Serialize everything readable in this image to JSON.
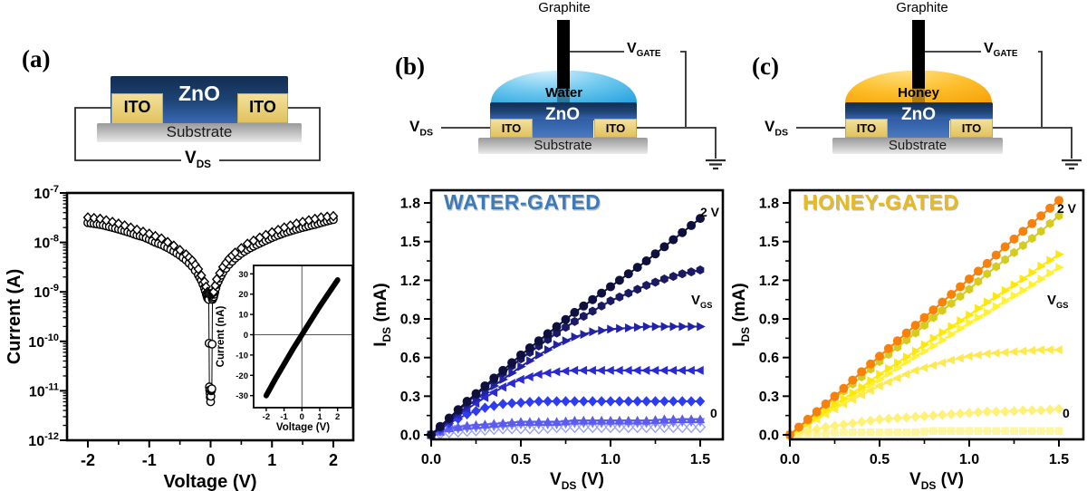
{
  "figure": {
    "panels": {
      "a": {
        "label": "(a)",
        "schematic": {
          "zno": "ZnO",
          "ito_left": "ITO",
          "ito_right": "ITO",
          "substrate": "Substrate",
          "vds_base": "V",
          "vds_sub": "DS"
        }
      },
      "b": {
        "label": "(b)",
        "title": "WATER-GATED",
        "title_color": "#3d7ab8",
        "schematic": {
          "graphite": "Graphite",
          "liquid": "Water",
          "zno": "ZnO",
          "ito_left": "ITO",
          "ito_right": "ITO",
          "substrate": "Substrate",
          "vds_base": "V",
          "vds_sub": "DS",
          "vgate_base": "V",
          "vgate_sub": "GATE"
        },
        "annotations": {
          "gate_top": "2 V",
          "gate_bottom": "0",
          "gate_base": "V",
          "gate_sub": "GS"
        }
      },
      "c": {
        "label": "(c)",
        "title": "HONEY-GATED",
        "title_color": "#e9ba1c",
        "schematic": {
          "graphite": "Graphite",
          "liquid": "Honey",
          "zno": "ZnO",
          "ito_left": "ITO",
          "ito_right": "ITO",
          "substrate": "Substrate",
          "vds_base": "V",
          "vds_sub": "DS",
          "vgate_base": "V",
          "vgate_sub": "GATE"
        },
        "annotations": {
          "gate_top": "2 V",
          "gate_bottom": "0",
          "gate_base": "V",
          "gate_sub": "GS"
        }
      }
    }
  },
  "chart_data": [
    {
      "id": "iv-log",
      "type": "scatter",
      "xlabel": "Voltage (V)",
      "ylabel": "Current (A)",
      "x_ticks": [
        -2,
        -1,
        0,
        1,
        2
      ],
      "x_minor_ticks": [
        -1.5,
        -0.5,
        0.5,
        1.5
      ],
      "y_scale": "log",
      "y_tick_exponents": [
        -7,
        -8,
        -9,
        -10,
        -11,
        -12
      ],
      "xlim": [
        -2.5,
        2.5
      ],
      "ylim": [
        1e-12,
        1e-07
      ],
      "series": [
        {
          "name": "iv-sweep-circles",
          "marker": "circle-open",
          "color": "#000000",
          "points": [
            [
              -2,
              2.5e-08
            ],
            [
              -1.9,
              2.4e-08
            ],
            [
              -1.8,
              2.3e-08
            ],
            [
              -1.7,
              2.15e-08
            ],
            [
              -1.6,
              2e-08
            ],
            [
              -1.5,
              1.85e-08
            ],
            [
              -1.4,
              1.7e-08
            ],
            [
              -1.3,
              1.55e-08
            ],
            [
              -1.2,
              1.4e-08
            ],
            [
              -1.1,
              1.3e-08
            ],
            [
              -1.0,
              1.15e-08
            ],
            [
              -0.9,
              1e-08
            ],
            [
              -0.8,
              9e-09
            ],
            [
              -0.7,
              7.8e-09
            ],
            [
              -0.6,
              6.6e-09
            ],
            [
              -0.5,
              5.5e-09
            ],
            [
              -0.4,
              4.4e-09
            ],
            [
              -0.3,
              3.3e-09
            ],
            [
              -0.2,
              2.2e-09
            ],
            [
              -0.15,
              1.7e-09
            ],
            [
              -0.1,
              1.2e-09
            ],
            [
              -0.07,
              9e-10
            ],
            [
              -0.05,
              7.5e-10
            ],
            [
              -0.03,
              7e-10
            ],
            [
              -0.02,
              1.2e-11
            ],
            [
              -0.01,
              9e-12
            ],
            [
              0,
              6e-12
            ],
            [
              0.01,
              1e-11
            ],
            [
              0.02,
              1.1e-11
            ],
            [
              0.03,
              7e-10
            ],
            [
              0.05,
              8e-10
            ],
            [
              0.07,
              1e-09
            ],
            [
              0.1,
              1.4e-09
            ],
            [
              0.15,
              1.9e-09
            ],
            [
              0.2,
              2.5e-09
            ],
            [
              0.3,
              3.6e-09
            ],
            [
              0.4,
              4.8e-09
            ],
            [
              0.5,
              6e-09
            ],
            [
              0.6,
              7.2e-09
            ],
            [
              0.7,
              8.4e-09
            ],
            [
              0.8,
              9.6e-09
            ],
            [
              0.9,
              1.1e-08
            ],
            [
              1.0,
              1.25e-08
            ],
            [
              1.1,
              1.4e-08
            ],
            [
              1.2,
              1.55e-08
            ],
            [
              1.3,
              1.7e-08
            ],
            [
              1.4,
              1.85e-08
            ],
            [
              1.5,
              2e-08
            ],
            [
              1.6,
              2.15e-08
            ],
            [
              1.7,
              2.3e-08
            ],
            [
              1.8,
              2.5e-08
            ],
            [
              1.9,
              2.7e-08
            ],
            [
              2.0,
              2.9e-08
            ]
          ]
        },
        {
          "name": "iv-sweep-diamonds",
          "marker": "diamond-open",
          "color": "#000000",
          "points": [
            [
              -2,
              3.2e-08
            ],
            [
              -1.8,
              3e-08
            ],
            [
              -1.6,
              2.6e-08
            ],
            [
              -1.4,
              2.2e-08
            ],
            [
              -1.2,
              1.8e-08
            ],
            [
              -1.0,
              1.5e-08
            ],
            [
              -0.8,
              1.2e-08
            ],
            [
              -0.6,
              8.6e-09
            ],
            [
              -0.4,
              5.7e-09
            ],
            [
              -0.3,
              4.3e-09
            ],
            [
              -0.2,
              2.9e-09
            ],
            [
              -0.1,
              1.6e-09
            ],
            [
              -0.05,
              1e-09
            ],
            [
              -0.03,
              9e-10
            ],
            [
              0.03,
              9e-10
            ],
            [
              0.05,
              1e-09
            ],
            [
              0.1,
              1.8e-09
            ],
            [
              0.2,
              3.2e-09
            ],
            [
              0.3,
              4.7e-09
            ],
            [
              0.4,
              6.2e-09
            ],
            [
              0.6,
              9.4e-09
            ],
            [
              0.8,
              1.25e-08
            ],
            [
              1.0,
              1.6e-08
            ],
            [
              1.2,
              2e-08
            ],
            [
              1.4,
              2.4e-08
            ],
            [
              1.6,
              2.8e-08
            ],
            [
              1.8,
              3.2e-08
            ],
            [
              2.0,
              3.4e-08
            ]
          ]
        }
      ]
    },
    {
      "id": "iv-linear-inset",
      "type": "line",
      "xlabel": "Voltage (V)",
      "ylabel": "Current (nA)",
      "x_ticks": [
        -2,
        -1,
        0,
        1,
        2
      ],
      "y_ticks": [
        30,
        20,
        10,
        0,
        -10,
        -20,
        -30
      ],
      "xlim": [
        -2.6,
        2.6
      ],
      "ylim": [
        -36,
        36
      ],
      "zero_lines": true,
      "series": [
        {
          "name": "iv-linear-band",
          "color": "#000000",
          "width": 6,
          "points": [
            [
              -2,
              -30
            ],
            [
              -1.5,
              -22
            ],
            [
              -1,
              -14.5
            ],
            [
              -0.5,
              -7
            ],
            [
              0,
              0
            ],
            [
              0.5,
              7
            ],
            [
              1,
              14
            ],
            [
              1.5,
              20.5
            ],
            [
              2,
              27
            ]
          ]
        }
      ]
    },
    {
      "id": "water-gated-output",
      "type": "scatter",
      "title": "WATER-GATED",
      "xlabel_parts": {
        "base": "V",
        "sub": "DS",
        "unit": " (V)"
      },
      "ylabel_parts": {
        "base": "I",
        "sub": "DS",
        "unit": " (mA)"
      },
      "x_ticks": [
        0.0,
        0.5,
        1.0,
        1.5
      ],
      "y_ticks": [
        0.0,
        0.3,
        0.6,
        0.9,
        1.2,
        1.5,
        1.8
      ],
      "xlim": [
        0,
        1.63
      ],
      "ylim": [
        -0.04,
        1.93
      ],
      "gate_sweep": {
        "label_base": "V",
        "label_sub": "GS",
        "from": "0",
        "to": "2 V"
      },
      "x": [
        0,
        0.1,
        0.2,
        0.3,
        0.4,
        0.5,
        0.6,
        0.7,
        0.8,
        0.9,
        1.0,
        1.1,
        1.2,
        1.3,
        1.4,
        1.5
      ],
      "series": [
        {
          "name": "vgs-max-2V",
          "marker": "circle",
          "color": "#10103e",
          "y": [
            0,
            0.13,
            0.26,
            0.38,
            0.5,
            0.62,
            0.73,
            0.84,
            0.95,
            1.05,
            1.15,
            1.25,
            1.35,
            1.46,
            1.57,
            1.68
          ]
        },
        {
          "name": "vgs-step-6",
          "marker": "hexagon",
          "color": "#191964",
          "y": [
            0,
            0.12,
            0.25,
            0.37,
            0.48,
            0.59,
            0.69,
            0.79,
            0.88,
            0.96,
            1.04,
            1.1,
            1.16,
            1.21,
            1.25,
            1.28
          ]
        },
        {
          "name": "vgs-step-5",
          "marker": "tri-right",
          "color": "#2222a6",
          "y": [
            0,
            0.11,
            0.22,
            0.33,
            0.43,
            0.53,
            0.62,
            0.7,
            0.76,
            0.8,
            0.82,
            0.83,
            0.84,
            0.84,
            0.84,
            0.84
          ]
        },
        {
          "name": "vgs-step-4",
          "marker": "tri-left",
          "color": "#2a2ad2",
          "y": [
            0,
            0.1,
            0.2,
            0.29,
            0.37,
            0.43,
            0.47,
            0.49,
            0.5,
            0.5,
            0.5,
            0.5,
            0.5,
            0.5,
            0.5,
            0.5
          ]
        },
        {
          "name": "vgs-step-3",
          "marker": "diamond",
          "color": "#2d3cf2",
          "y": [
            0,
            0.09,
            0.16,
            0.21,
            0.24,
            0.25,
            0.26,
            0.26,
            0.26,
            0.26,
            0.26,
            0.26,
            0.26,
            0.26,
            0.26,
            0.26
          ]
        },
        {
          "name": "vgs-step-2",
          "marker": "tri-up",
          "color": "#5b5bf0",
          "y": [
            0,
            0.05,
            0.07,
            0.08,
            0.09,
            0.1,
            0.1,
            0.1,
            0.11,
            0.11,
            0.11,
            0.11,
            0.11,
            0.12,
            0.12,
            0.12
          ]
        },
        {
          "name": "vgs-step-1",
          "marker": "tri-down",
          "color": "#7b7bf2",
          "y": [
            0,
            0.04,
            0.05,
            0.06,
            0.07,
            0.08,
            0.08,
            0.08,
            0.09,
            0.09,
            0.09,
            0.09,
            0.09,
            0.09,
            0.1,
            0.1
          ]
        },
        {
          "name": "vgs-min-0",
          "marker": "diamond-open",
          "color": "#9aa4f0",
          "y": [
            0,
            0.02,
            0.03,
            0.04,
            0.05,
            0.05,
            0.05,
            0.06,
            0.06,
            0.06,
            0.06,
            0.06,
            0.06,
            0.06,
            0.06,
            0.06
          ]
        }
      ]
    },
    {
      "id": "honey-gated-output",
      "type": "scatter",
      "title": "HONEY-GATED",
      "xlabel_parts": {
        "base": "V",
        "sub": "DS",
        "unit": " (V)"
      },
      "ylabel_parts": {
        "base": "I",
        "sub": "DS",
        "unit": " (mA)"
      },
      "x_ticks": [
        0.0,
        0.5,
        1.0,
        1.5
      ],
      "y_ticks": [
        0.0,
        0.3,
        0.6,
        0.9,
        1.2,
        1.5,
        1.8
      ],
      "xlim": [
        0,
        1.63
      ],
      "ylim": [
        -0.04,
        1.93
      ],
      "gate_sweep": {
        "label_base": "V",
        "label_sub": "GS",
        "from": "0",
        "to": "2 V"
      },
      "x": [
        0,
        0.1,
        0.2,
        0.3,
        0.4,
        0.5,
        0.6,
        0.7,
        0.8,
        0.9,
        1.0,
        1.1,
        1.2,
        1.3,
        1.4,
        1.5
      ],
      "series": [
        {
          "name": "vgs-max-2V",
          "marker": "circle",
          "color": "#f8810b",
          "y": [
            0,
            0.12,
            0.24,
            0.36,
            0.49,
            0.61,
            0.73,
            0.85,
            0.97,
            1.09,
            1.21,
            1.33,
            1.46,
            1.58,
            1.7,
            1.82
          ]
        },
        {
          "name": "vgs-step-6",
          "marker": "hexagon",
          "color": "#d6cc1e",
          "y": [
            0,
            0.11,
            0.23,
            0.34,
            0.45,
            0.57,
            0.68,
            0.79,
            0.91,
            1.02,
            1.13,
            1.25,
            1.36,
            1.47,
            1.58,
            1.7
          ]
        },
        {
          "name": "vgs-step-5",
          "marker": "tri-right",
          "color": "#ffe70a",
          "y": [
            0,
            0.09,
            0.19,
            0.28,
            0.37,
            0.47,
            0.56,
            0.65,
            0.75,
            0.84,
            0.93,
            1.03,
            1.12,
            1.21,
            1.31,
            1.4
          ]
        },
        {
          "name": "vgs-step-4",
          "marker": "tri-right",
          "color": "#fff133",
          "y": [
            0,
            0.09,
            0.17,
            0.26,
            0.35,
            0.43,
            0.52,
            0.61,
            0.69,
            0.78,
            0.87,
            0.95,
            1.04,
            1.12,
            1.21,
            1.3
          ]
        },
        {
          "name": "vgs-step-3",
          "marker": "tri-left",
          "color": "#ffe94f",
          "y": [
            0,
            0.08,
            0.16,
            0.24,
            0.31,
            0.38,
            0.44,
            0.5,
            0.54,
            0.58,
            0.61,
            0.63,
            0.64,
            0.65,
            0.66,
            0.66
          ]
        },
        {
          "name": "vgs-step-2",
          "marker": "diamond",
          "color": "#fff078",
          "y": [
            0,
            0.03,
            0.06,
            0.08,
            0.1,
            0.12,
            0.13,
            0.14,
            0.15,
            0.16,
            0.17,
            0.18,
            0.18,
            0.19,
            0.19,
            0.2
          ]
        },
        {
          "name": "vgs-min-0",
          "marker": "square",
          "color": "#fdf5a0",
          "y": [
            0,
            0.01,
            0.01,
            0.02,
            0.02,
            0.02,
            0.02,
            0.02,
            0.03,
            0.03,
            0.03,
            0.03,
            0.03,
            0.03,
            0.03,
            0.03
          ]
        }
      ]
    }
  ]
}
